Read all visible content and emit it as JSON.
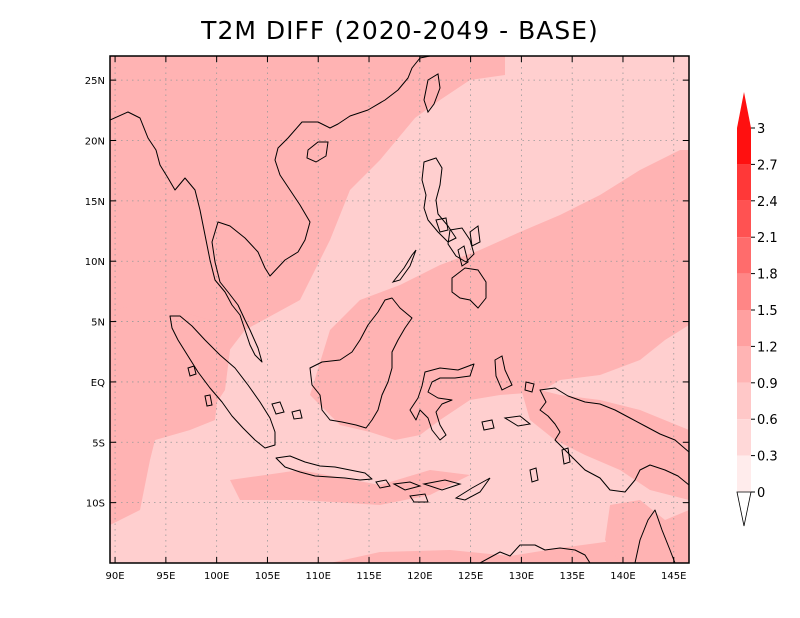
{
  "title": "T2M DIFF (2020-2049 - BASE)",
  "map": {
    "lon_range": [
      89.5,
      146.5
    ],
    "lat_range": [
      -15,
      27
    ],
    "lon_ticks": [
      "90E",
      "95E",
      "100E",
      "105E",
      "110E",
      "115E",
      "120E",
      "125E",
      "130E",
      "135E",
      "140E",
      "145E"
    ],
    "lat_ticks": [
      "25N",
      "20N",
      "15N",
      "10N",
      "5N",
      "EQ",
      "5S",
      "10S"
    ],
    "background_color": "#ffcfcf",
    "warm_color": "#ffb3b3"
  },
  "colorbar": {
    "levels": [
      "3",
      "2.7",
      "2.4",
      "2.1",
      "1.8",
      "1.5",
      "1.2",
      "0.9",
      "0.6",
      "0.3",
      "0"
    ],
    "colors": [
      "#ff1010",
      "#ff3838",
      "#ff5252",
      "#ff6c6c",
      "#ff8686",
      "#ffa0a0",
      "#ffb4b4",
      "#ffc8c8",
      "#ffd8d8",
      "#ffecec",
      "#ffffff"
    ]
  }
}
